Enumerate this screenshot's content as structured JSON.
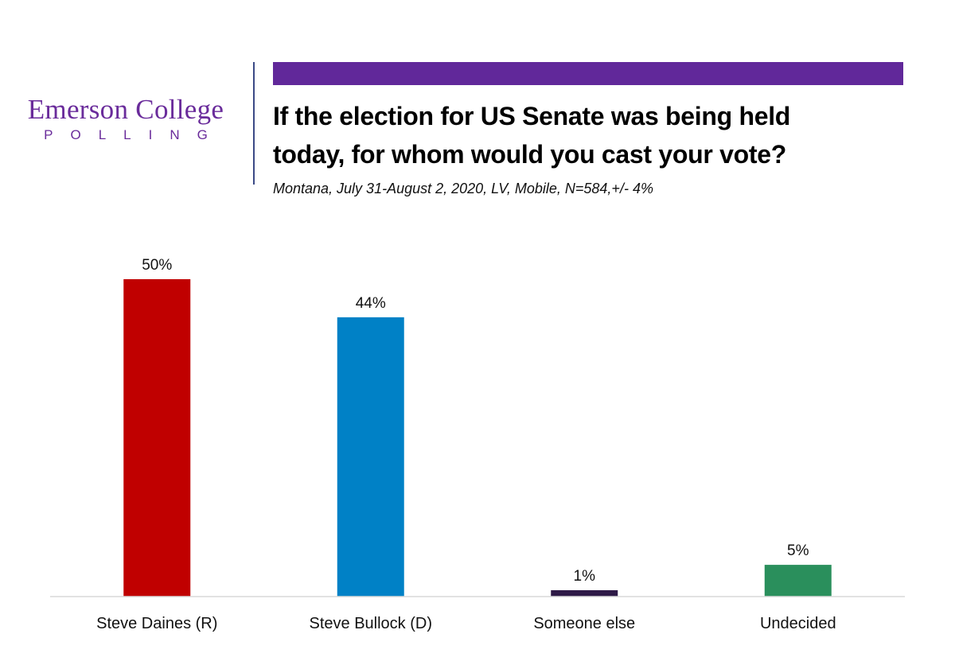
{
  "logo": {
    "name": "Emerson College",
    "subtitle": "POLLING",
    "color": "#6a2c9b"
  },
  "header": {
    "accent_color": "#61289a",
    "title_line1": "If the election for US Senate was being held",
    "title_line2": "today, for whom would you cast your vote?",
    "subtitle": "Montana, July 31-August 2, 2020, LV, Mobile,  N=584,+/-  4%"
  },
  "chart_data": {
    "type": "bar",
    "title": "If the election for US Senate was being held today, for whom would you cast your vote?",
    "subtitle": "Montana, July 31-August 2, 2020, LV, Mobile, N=584, +/- 4%",
    "xlabel": "",
    "ylabel": "",
    "categories": [
      "Steve Daines (R)",
      "Steve Bullock (D)",
      "Someone else",
      "Undecided"
    ],
    "values": [
      50,
      44,
      1,
      5
    ],
    "value_labels": [
      "50%",
      "44%",
      "1%",
      "5%"
    ],
    "colors": [
      "#c00000",
      "#0081c6",
      "#2e1a47",
      "#2a8f5c"
    ],
    "ylim": [
      0,
      50
    ],
    "grid": false,
    "legend": "none",
    "unit": "%"
  }
}
